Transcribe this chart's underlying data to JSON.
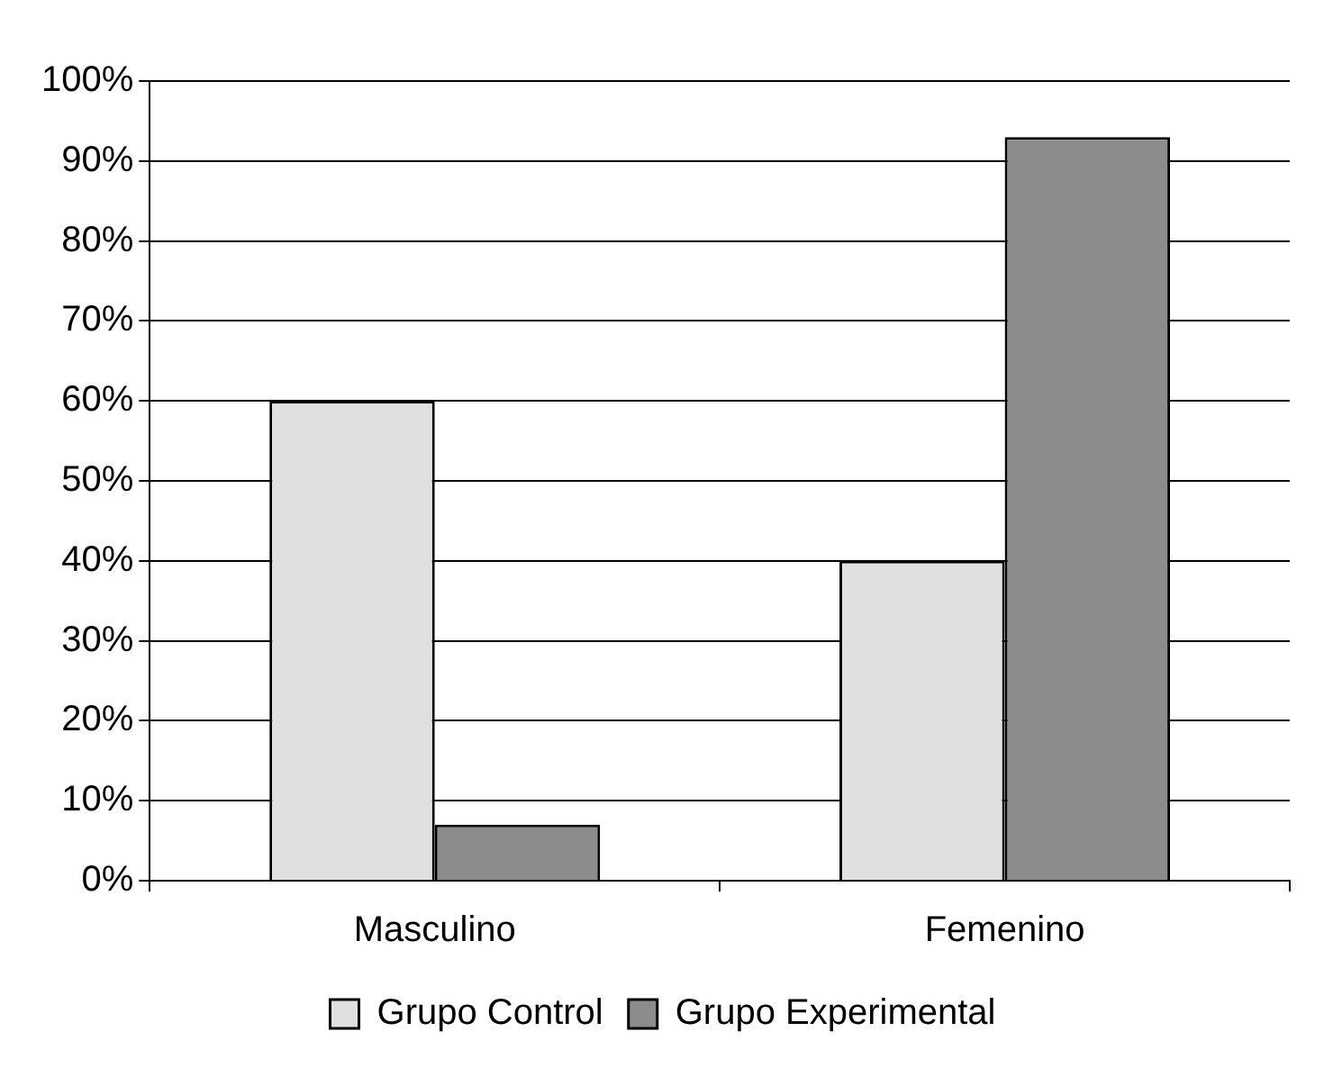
{
  "chart_data": {
    "type": "bar",
    "categories": [
      "Masculino",
      "Femenino"
    ],
    "series": [
      {
        "name": "Grupo Control",
        "color": "#e0e0e0",
        "values": [
          60,
          40
        ]
      },
      {
        "name": "Grupo Experimental",
        "color": "#8c8c8c",
        "values": [
          7,
          93
        ]
      }
    ],
    "ylim": [
      0,
      100
    ],
    "yticks": [
      {
        "value": 0,
        "label": "0%"
      },
      {
        "value": 10,
        "label": "10%"
      },
      {
        "value": 20,
        "label": "20%"
      },
      {
        "value": 30,
        "label": "30%"
      },
      {
        "value": 40,
        "label": "40%"
      },
      {
        "value": 50,
        "label": "50%"
      },
      {
        "value": 60,
        "label": "60%"
      },
      {
        "value": 70,
        "label": "70%"
      },
      {
        "value": 80,
        "label": "80%"
      },
      {
        "value": 90,
        "label": "90%"
      },
      {
        "value": 100,
        "label": "100%"
      }
    ],
    "grid": "y",
    "legend": "bottom"
  }
}
